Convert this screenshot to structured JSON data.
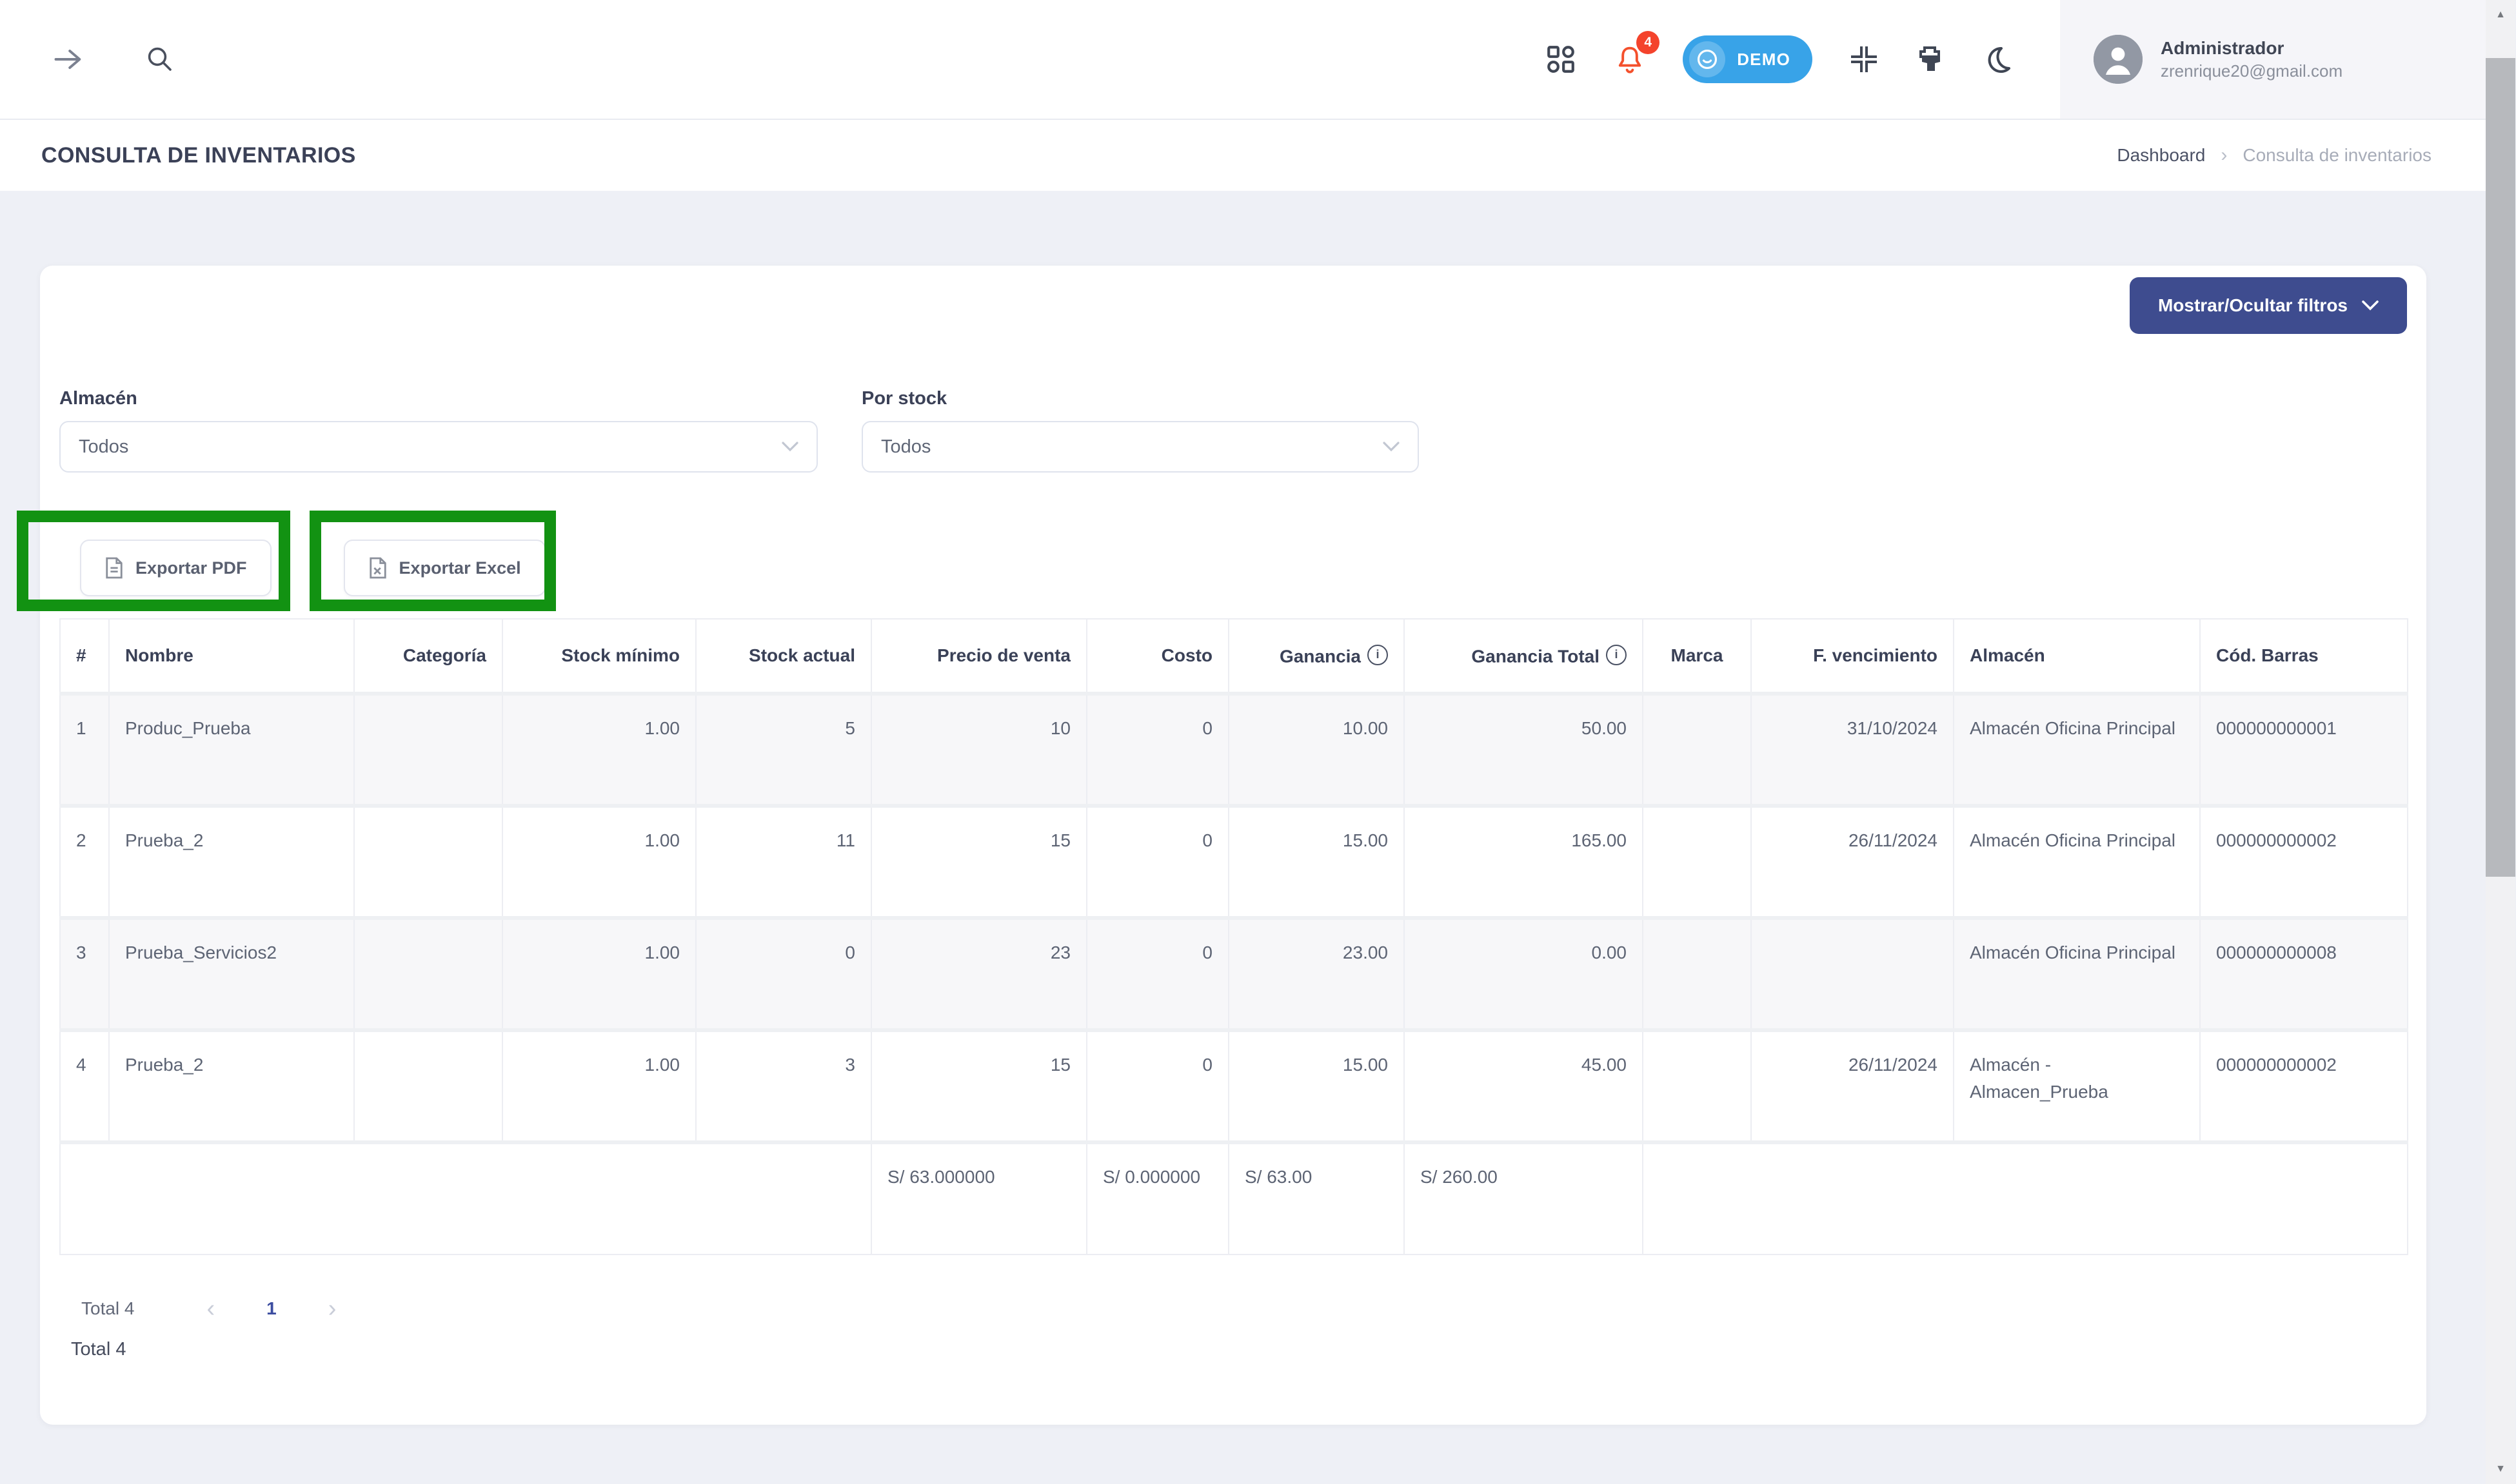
{
  "header": {
    "notification_count": "4",
    "demo_badge": "DEMO",
    "user": {
      "name": "Administrador",
      "email": "zrenrique20@gmail.com"
    }
  },
  "title_bar": {
    "title": "CONSULTA DE INVENTARIOS",
    "breadcrumb": {
      "dashboard": "Dashboard",
      "separator": "›",
      "current": "Consulta de inventarios"
    }
  },
  "filters": {
    "toggle_label": "Mostrar/Ocultar filtros",
    "almacen": {
      "label": "Almacén",
      "value": "Todos"
    },
    "por_stock": {
      "label": "Por stock",
      "value": "Todos"
    }
  },
  "actions": {
    "export_pdf": "Exportar PDF",
    "export_excel": "Exportar Excel"
  },
  "table": {
    "headers": [
      "#",
      "Nombre",
      "Categoría",
      "Stock mínimo",
      "Stock actual",
      "Precio de venta",
      "Costo",
      "Ganancia",
      "Ganancia Total",
      "Marca",
      "F. vencimiento",
      "Almacén",
      "Cód. Barras"
    ],
    "rows": [
      {
        "num": "1",
        "nombre": "Produc_Prueba",
        "categoria": "",
        "stock_min": "1.00",
        "stock_actual": "5",
        "precio_venta": "10",
        "costo": "0",
        "ganancia": "10.00",
        "ganancia_total": "50.00",
        "marca": "",
        "f_vencimiento": "31/10/2024",
        "almacen": "Almacén Oficina Principal",
        "cod_barras": "000000000001"
      },
      {
        "num": "2",
        "nombre": "Prueba_2",
        "categoria": "",
        "stock_min": "1.00",
        "stock_actual": "11",
        "precio_venta": "15",
        "costo": "0",
        "ganancia": "15.00",
        "ganancia_total": "165.00",
        "marca": "",
        "f_vencimiento": "26/11/2024",
        "almacen": "Almacén Oficina Principal",
        "cod_barras": "000000000002"
      },
      {
        "num": "3",
        "nombre": "Prueba_Servicios2",
        "categoria": "",
        "stock_min": "1.00",
        "stock_actual": "0",
        "precio_venta": "23",
        "costo": "0",
        "ganancia": "23.00",
        "ganancia_total": "0.00",
        "marca": "",
        "f_vencimiento": "",
        "almacen": "Almacén Oficina Principal",
        "cod_barras": "000000000008"
      },
      {
        "num": "4",
        "nombre": "Prueba_2",
        "categoria": "",
        "stock_min": "1.00",
        "stock_actual": "3",
        "precio_venta": "15",
        "costo": "0",
        "ganancia": "15.00",
        "ganancia_total": "45.00",
        "marca": "",
        "f_vencimiento": "26/11/2024",
        "almacen": "Almacén - Almacen_Prueba",
        "cod_barras": "000000000002"
      }
    ],
    "totals": {
      "precio_venta": "S/ 63.000000",
      "costo": "S/ 0.000000",
      "ganancia": "S/ 63.00",
      "ganancia_total": "S/ 260.00"
    }
  },
  "pagination": {
    "total_label": "Total 4",
    "current_page": "1"
  },
  "footer_total": "Total 4",
  "colors": {
    "accent_indigo": "#3e4c8f",
    "demo_blue": "#38a3e8",
    "bell_orange": "#f4502c",
    "badge_red": "#f4432c",
    "annotation_green": "#129212",
    "active_page_blue": "#3c4da0",
    "page_background": "#eef0f6"
  }
}
